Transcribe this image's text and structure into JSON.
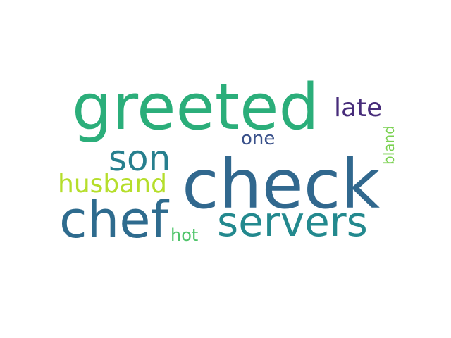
{
  "words": [
    {
      "text": "greeted",
      "color": "#2bae7a",
      "orientation": "horizontal"
    },
    {
      "text": "check",
      "color": "#31688e",
      "orientation": "horizontal"
    },
    {
      "text": "chef",
      "color": "#2e6b8e",
      "orientation": "horizontal"
    },
    {
      "text": "servers",
      "color": "#23898e",
      "orientation": "horizontal"
    },
    {
      "text": "son",
      "color": "#277f8e",
      "orientation": "horizontal"
    },
    {
      "text": "late",
      "color": "#472c7a",
      "orientation": "horizontal"
    },
    {
      "text": "husband",
      "color": "#b5de2b",
      "orientation": "horizontal"
    },
    {
      "text": "one",
      "color": "#3b528b",
      "orientation": "horizontal"
    },
    {
      "text": "hot",
      "color": "#4fc46a",
      "orientation": "horizontal"
    },
    {
      "text": "bland",
      "color": "#7ad151",
      "orientation": "vertical"
    }
  ]
}
